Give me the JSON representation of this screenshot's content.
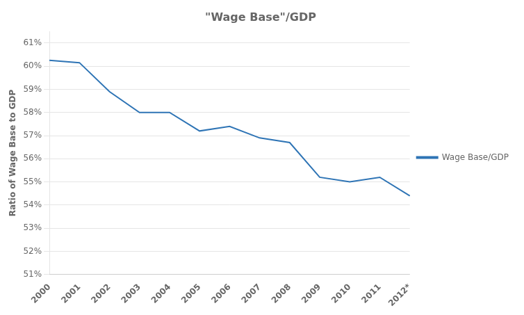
{
  "chart_data": {
    "type": "line",
    "title": "\"Wage Base\"/GDP",
    "ylabel": "Ratio of Wage Base to GDP",
    "categories": [
      "2000",
      "2001",
      "2002",
      "2003",
      "2004",
      "2005",
      "2006",
      "2007",
      "2008",
      "2009",
      "2010",
      "2011",
      "2012*"
    ],
    "series": [
      {
        "name": "Wage Base/GDP",
        "color": "#2E74B5",
        "values": [
          0.6025,
          0.6015,
          0.589,
          0.58,
          0.58,
          0.572,
          0.574,
          0.569,
          0.567,
          0.552,
          0.55,
          0.552,
          0.544
        ]
      }
    ],
    "ylim": [
      0.51,
      0.615
    ],
    "yticks": [
      {
        "value": 0.51,
        "label": "51%"
      },
      {
        "value": 0.52,
        "label": "52%"
      },
      {
        "value": 0.53,
        "label": "53%"
      },
      {
        "value": 0.54,
        "label": "54%"
      },
      {
        "value": 0.55,
        "label": "55%"
      },
      {
        "value": 0.56,
        "label": "56%"
      },
      {
        "value": 0.57,
        "label": "57%"
      },
      {
        "value": 0.58,
        "label": "58%"
      },
      {
        "value": 0.59,
        "label": "59%"
      },
      {
        "value": 0.6,
        "label": "60%"
      },
      {
        "value": 0.61,
        "label": "61%"
      }
    ],
    "grid": true,
    "legend": "right"
  }
}
